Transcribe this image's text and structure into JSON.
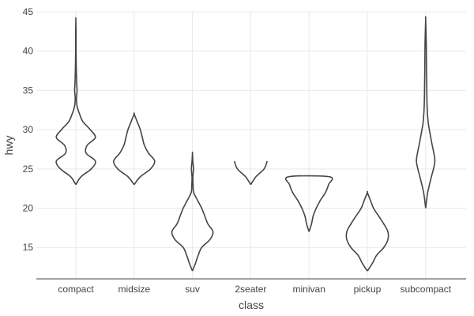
{
  "chart_data": {
    "type": "violin",
    "title": "",
    "xlabel": "class",
    "ylabel": "hwy",
    "ylim": [
      11,
      45
    ],
    "yticks": [
      15,
      20,
      25,
      30,
      35,
      40,
      45
    ],
    "ytick_labels": [
      "15",
      "20",
      "25",
      "30",
      "35",
      "40",
      "45"
    ],
    "grid": true,
    "legend": "none",
    "colors": {
      "outline": "#444444",
      "grid": "#e9e9e9",
      "background": "#ffffff"
    },
    "categories": [
      "compact",
      "midsize",
      "suv",
      "2seater",
      "minivan",
      "pickup",
      "subcompact"
    ],
    "series": [
      {
        "category": "compact",
        "profile": [
          [
            23,
            0
          ],
          [
            24,
            0.25
          ],
          [
            25,
            0.75
          ],
          [
            26,
            0.95
          ],
          [
            27,
            0.5
          ],
          [
            28,
            0.55
          ],
          [
            29,
            0.95
          ],
          [
            30,
            0.7
          ],
          [
            31,
            0.35
          ],
          [
            32,
            0.18
          ],
          [
            33,
            0.06
          ],
          [
            34,
            0.03
          ],
          [
            35,
            0.06
          ],
          [
            36,
            0.04
          ],
          [
            38,
            0.02
          ],
          [
            40,
            0.01
          ],
          [
            42,
            0.01
          ],
          [
            44,
            0
          ]
        ]
      },
      {
        "category": "midsize",
        "profile": [
          [
            23,
            0
          ],
          [
            24,
            0.3
          ],
          [
            25,
            0.8
          ],
          [
            26,
            1.0
          ],
          [
            27,
            0.7
          ],
          [
            28,
            0.5
          ],
          [
            29,
            0.4
          ],
          [
            30,
            0.3
          ],
          [
            31,
            0.15
          ],
          [
            32,
            0
          ]
        ]
      },
      {
        "category": "suv",
        "profile": [
          [
            12,
            0
          ],
          [
            13,
            0.15
          ],
          [
            14,
            0.28
          ],
          [
            15,
            0.45
          ],
          [
            16,
            0.85
          ],
          [
            17,
            1.0
          ],
          [
            18,
            0.75
          ],
          [
            19,
            0.6
          ],
          [
            20,
            0.45
          ],
          [
            21,
            0.25
          ],
          [
            22,
            0.06
          ],
          [
            23,
            0.03
          ],
          [
            24,
            0.02
          ],
          [
            25,
            0.05
          ],
          [
            26,
            0.02
          ],
          [
            27,
            0
          ]
        ]
      },
      {
        "category": "2seater",
        "profile": [
          [
            23,
            0
          ],
          [
            24,
            0.25
          ],
          [
            25,
            0.65
          ],
          [
            26,
            0.8
          ]
        ]
      },
      {
        "category": "minivan",
        "profile": [
          [
            17,
            0
          ],
          [
            18,
            0.12
          ],
          [
            19,
            0.2
          ],
          [
            20,
            0.35
          ],
          [
            21,
            0.55
          ],
          [
            22,
            0.8
          ],
          [
            23,
            0.95
          ],
          [
            24,
            1.0
          ]
        ]
      },
      {
        "category": "pickup",
        "profile": [
          [
            12,
            0
          ],
          [
            13,
            0.25
          ],
          [
            14,
            0.45
          ],
          [
            15,
            0.8
          ],
          [
            16,
            1.0
          ],
          [
            17,
            1.0
          ],
          [
            18,
            0.8
          ],
          [
            19,
            0.55
          ],
          [
            20,
            0.3
          ],
          [
            21,
            0.15
          ],
          [
            22,
            0
          ]
        ]
      },
      {
        "category": "subcompact",
        "profile": [
          [
            20,
            0
          ],
          [
            22,
            0.1
          ],
          [
            24,
            0.28
          ],
          [
            25,
            0.38
          ],
          [
            26,
            0.45
          ],
          [
            27,
            0.4
          ],
          [
            28,
            0.32
          ],
          [
            29,
            0.25
          ],
          [
            30,
            0.18
          ],
          [
            31,
            0.12
          ],
          [
            33,
            0.07
          ],
          [
            36,
            0.05
          ],
          [
            38,
            0.04
          ],
          [
            41,
            0.03
          ],
          [
            44,
            0
          ]
        ]
      }
    ]
  }
}
